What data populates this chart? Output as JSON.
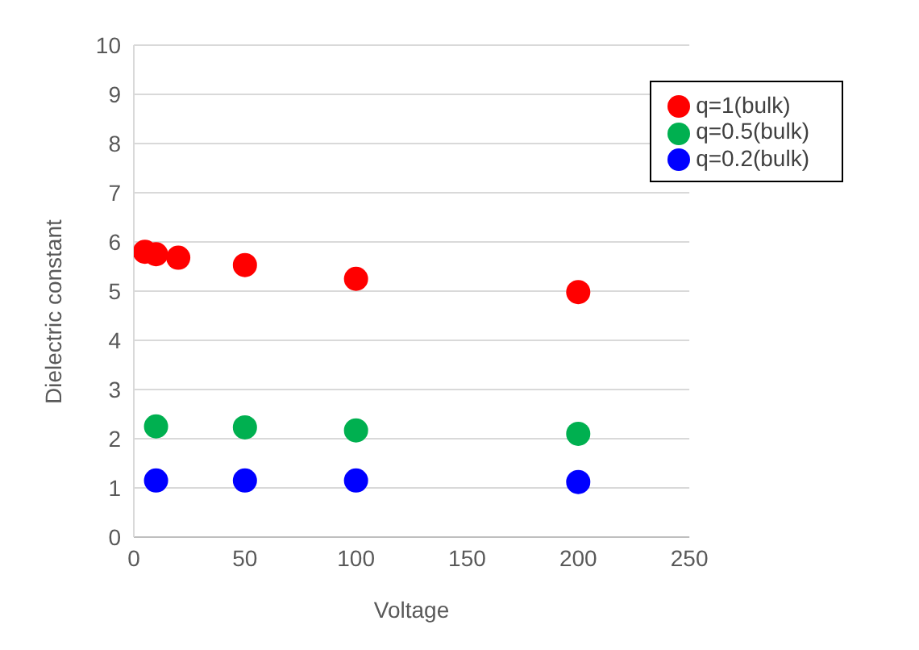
{
  "chart_data": {
    "type": "scatter",
    "xlabel": "Voltage",
    "ylabel": "Dielectric constant",
    "xlim": [
      0,
      250
    ],
    "xticks": [
      0,
      50,
      100,
      150,
      200,
      250
    ],
    "ylim": [
      0,
      10
    ],
    "yticks": [
      0,
      1,
      2,
      3,
      4,
      5,
      6,
      7,
      8,
      9,
      10
    ],
    "grid": "y",
    "legend": "top right",
    "marker": "circle",
    "series": [
      {
        "name": "q=1(bulk)",
        "color": "#ff0000",
        "x": [
          5,
          10,
          20,
          50,
          100,
          200
        ],
        "values": [
          5.8,
          5.75,
          5.68,
          5.53,
          5.25,
          4.98
        ]
      },
      {
        "name": "q=0.5(bulk)",
        "color": "#00b050",
        "x": [
          10,
          50,
          100,
          200
        ],
        "values": [
          2.25,
          2.23,
          2.17,
          2.1
        ]
      },
      {
        "name": "q=0.2(bulk)",
        "color": "#0000ff",
        "x": [
          10,
          50,
          100,
          200
        ],
        "values": [
          1.15,
          1.15,
          1.15,
          1.12
        ]
      }
    ]
  }
}
